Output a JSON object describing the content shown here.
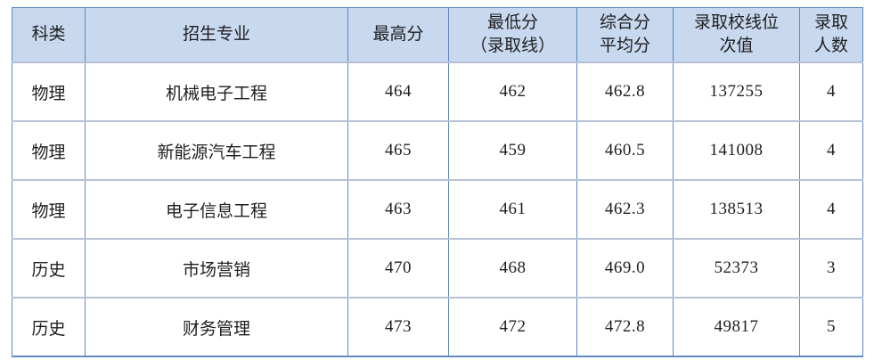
{
  "table": {
    "title_semantic": "admission-scores-table",
    "columns": [
      {
        "label": "科类"
      },
      {
        "label": "招生专业"
      },
      {
        "label": "最高分"
      },
      {
        "label": "最低分\n（录取线）"
      },
      {
        "label": "综合分\n平均分"
      },
      {
        "label": "录取校线位\n次值"
      },
      {
        "label": "录取\n人数"
      }
    ],
    "rows": [
      {
        "cells": [
          "物理",
          "机械电子工程",
          "464",
          "462",
          "462.8",
          "137255",
          "4"
        ]
      },
      {
        "cells": [
          "物理",
          "新能源汽车工程",
          "465",
          "459",
          "460.5",
          "141008",
          "4"
        ]
      },
      {
        "cells": [
          "物理",
          "电子信息工程",
          "463",
          "461",
          "462.3",
          "138513",
          "4"
        ]
      },
      {
        "cells": [
          "历史",
          "市场营销",
          "470",
          "468",
          "469.0",
          "52373",
          "3"
        ]
      },
      {
        "cells": [
          "历史",
          "财务管理",
          "473",
          "472",
          "472.8",
          "49817",
          "5"
        ]
      }
    ]
  },
  "colors": {
    "header_background": "#c7d8ef",
    "vertical_border": "#5b87c5",
    "horizontal_border": "#b7c1d6",
    "text": "#1f1f1f",
    "page_background": "#ffffff"
  }
}
